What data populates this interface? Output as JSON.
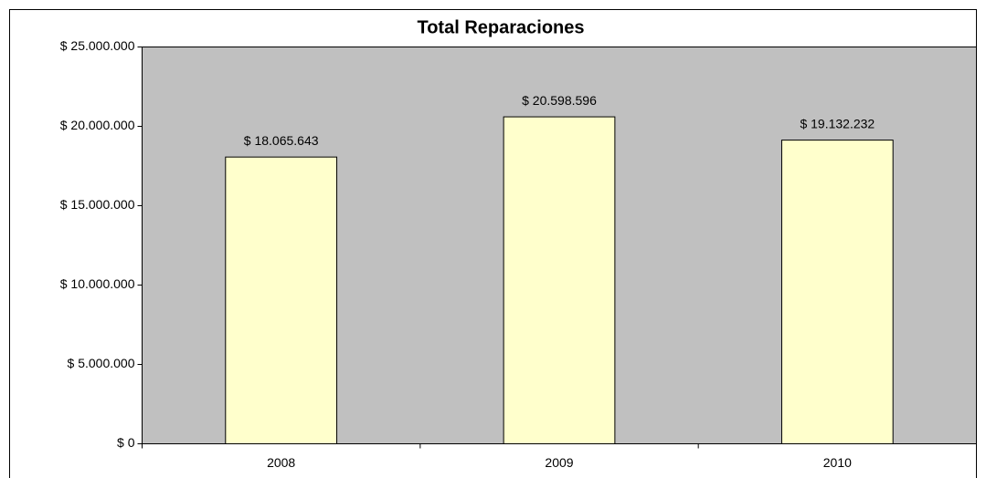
{
  "chart_data": {
    "type": "bar",
    "title": "Total Reparaciones",
    "categories": [
      "2008",
      "2009",
      "2010"
    ],
    "values": [
      18065643,
      20598596,
      19132232
    ],
    "value_labels": [
      "$ 18.065.643",
      "$ 20.598.596",
      "$ 19.132.232"
    ],
    "color": "#ffffcc",
    "plot_background": "#c0c0c0",
    "ylim": [
      0,
      25000000
    ],
    "yticks": [
      {
        "value": 0,
        "label": "$ 0"
      },
      {
        "value": 5000000,
        "label": "$ 5.000.000"
      },
      {
        "value": 10000000,
        "label": "$ 10.000.000"
      },
      {
        "value": 15000000,
        "label": "$ 15.000.000"
      },
      {
        "value": 20000000,
        "label": "$ 20.000.000"
      },
      {
        "value": 25000000,
        "label": "$ 25.000.000"
      }
    ],
    "grid": false
  }
}
